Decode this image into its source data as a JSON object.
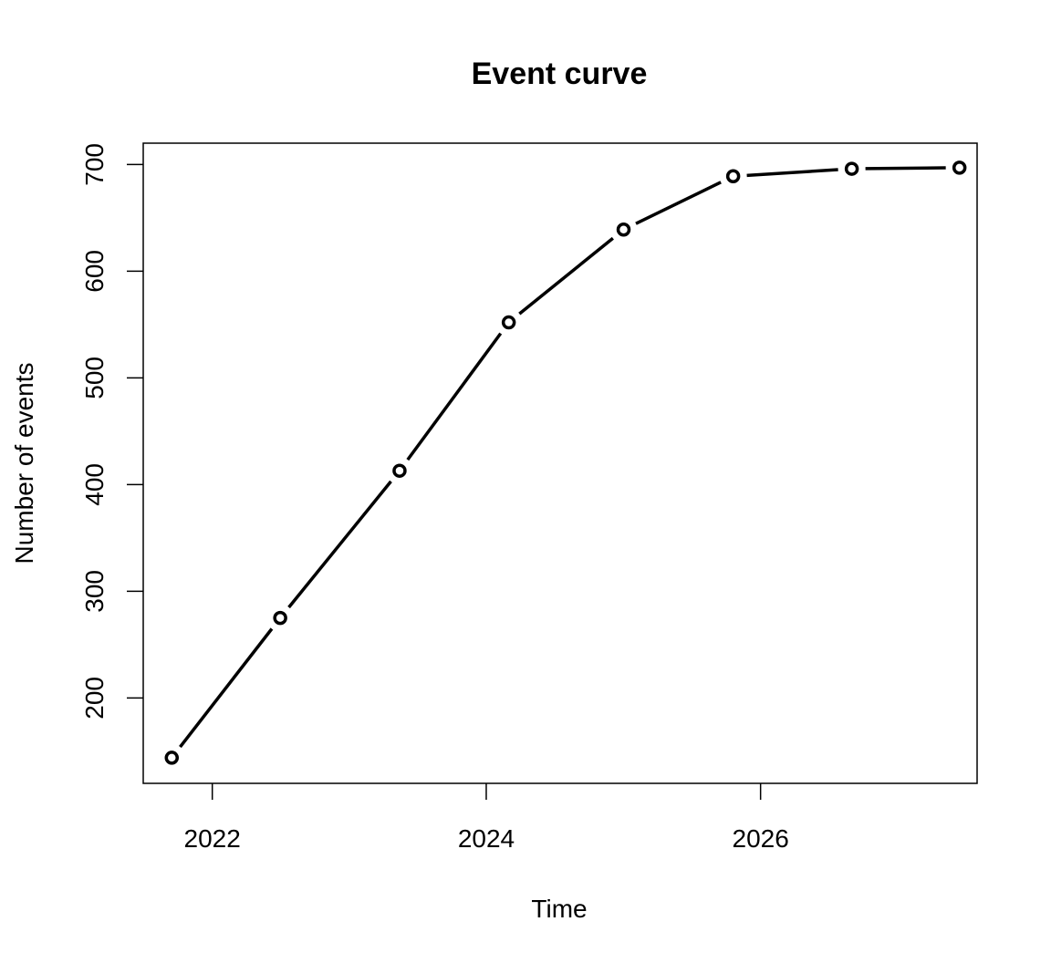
{
  "chart_data": {
    "type": "line",
    "title": "Event curve",
    "xlabel": "Time",
    "ylabel": "Number of events",
    "x_ticks": [
      "2022",
      "2024",
      "2026"
    ],
    "y_ticks": [
      "200",
      "300",
      "400",
      "500",
      "600",
      "700"
    ],
    "xlim": [
      "2021-07-01",
      "2027-08-01"
    ],
    "ylim": [
      120,
      720
    ],
    "grid": false,
    "legend": false,
    "line_color": "#000000",
    "marker": "open-circle",
    "series": [
      {
        "points": [
          {
            "x": "2021-09-15",
            "y": 144
          },
          {
            "x": "2022-07-01",
            "y": 275
          },
          {
            "x": "2023-05-15",
            "y": 413
          },
          {
            "x": "2024-03-01",
            "y": 552
          },
          {
            "x": "2025-01-01",
            "y": 639
          },
          {
            "x": "2025-10-20",
            "y": 689
          },
          {
            "x": "2026-09-01",
            "y": 696
          },
          {
            "x": "2027-06-15",
            "y": 697
          }
        ]
      }
    ]
  }
}
